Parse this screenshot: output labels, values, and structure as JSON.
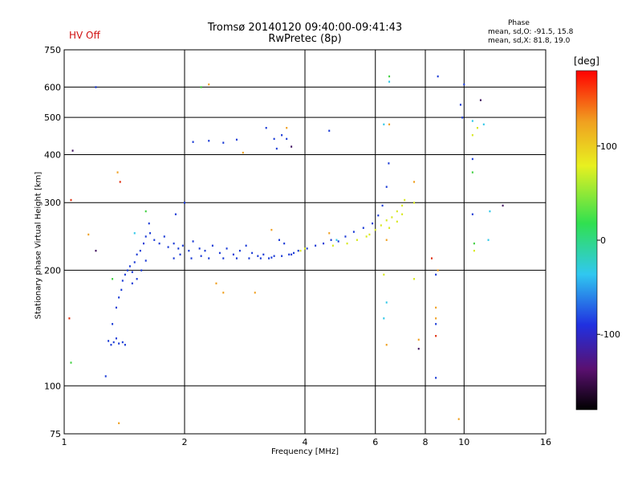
{
  "header": {
    "status": "HV Off",
    "title_line1": "Tromsø 20140120 09:40:00-09:41:43",
    "title_line2": "RwPretec (8p)",
    "phase_heading": "Phase",
    "phase_line1": "mean, sd,O: -91.5, 15.8",
    "phase_line2": "mean, sd,X:  81.8, 19.0"
  },
  "colors": {
    "blue": "#1a3ad6",
    "yellow": "#d8e820",
    "orange": "#f0a020",
    "red": "#e03010",
    "green": "#40d040",
    "cyan": "#30c8e8",
    "dark": "#401060"
  },
  "chart_data": {
    "type": "scatter",
    "title": "Tromsø 20140120 09:40:00-09:41:43",
    "subtitle": "RwPretec (8p)",
    "xlabel": "Frequency [MHz]",
    "ylabel": "Stationary phase Virtual Height [km]",
    "x_scale": "log",
    "y_scale": "log",
    "xlim": [
      1,
      16
    ],
    "ylim": [
      75,
      750
    ],
    "x_ticks": [
      1,
      2,
      4,
      6,
      8,
      10,
      16
    ],
    "y_ticks": [
      75,
      100,
      200,
      300,
      400,
      500,
      600,
      750
    ],
    "grid": true,
    "colorbar": {
      "label": "[deg]",
      "range": [
        -180,
        180
      ],
      "ticks": [
        100,
        0,
        -100
      ]
    },
    "series": [
      {
        "color": "blue",
        "points": [
          [
            1.29,
            131
          ],
          [
            1.31,
            128
          ],
          [
            1.33,
            130
          ],
          [
            1.35,
            133
          ],
          [
            1.37,
            129
          ],
          [
            1.4,
            130
          ],
          [
            1.42,
            128
          ],
          [
            1.32,
            145
          ],
          [
            1.35,
            160
          ],
          [
            1.37,
            170
          ],
          [
            1.39,
            178
          ],
          [
            1.4,
            188
          ],
          [
            1.42,
            195
          ],
          [
            1.44,
            200
          ],
          [
            1.46,
            205
          ],
          [
            1.48,
            198
          ],
          [
            1.5,
            210
          ],
          [
            1.52,
            220
          ],
          [
            1.55,
            225
          ],
          [
            1.58,
            235
          ],
          [
            1.6,
            245
          ],
          [
            1.48,
            185
          ],
          [
            1.52,
            190
          ],
          [
            1.56,
            200
          ],
          [
            1.6,
            212
          ],
          [
            1.64,
            250
          ],
          [
            1.68,
            240
          ],
          [
            1.73,
            235
          ],
          [
            1.78,
            245
          ],
          [
            1.82,
            230
          ],
          [
            1.88,
            235
          ],
          [
            1.93,
            228
          ],
          [
            1.98,
            232
          ],
          [
            2.05,
            225
          ],
          [
            2.1,
            238
          ],
          [
            2.18,
            228
          ],
          [
            2.25,
            225
          ],
          [
            2.35,
            232
          ],
          [
            2.45,
            222
          ],
          [
            2.55,
            228
          ],
          [
            2.65,
            220
          ],
          [
            2.75,
            225
          ],
          [
            2.85,
            232
          ],
          [
            2.95,
            222
          ],
          [
            3.05,
            218
          ],
          [
            3.15,
            220
          ],
          [
            3.25,
            215
          ],
          [
            3.35,
            218
          ],
          [
            3.45,
            240
          ],
          [
            3.55,
            235
          ],
          [
            3.65,
            220
          ],
          [
            3.75,
            222
          ],
          [
            3.85,
            225
          ],
          [
            4.05,
            228
          ],
          [
            4.25,
            232
          ],
          [
            4.45,
            235
          ],
          [
            4.65,
            240
          ],
          [
            4.85,
            238
          ],
          [
            5.05,
            245
          ],
          [
            5.3,
            252
          ],
          [
            5.6,
            258
          ],
          [
            5.9,
            265
          ],
          [
            6.1,
            278
          ],
          [
            6.25,
            295
          ],
          [
            6.4,
            330
          ],
          [
            6.48,
            380
          ],
          [
            1.88,
            215
          ],
          [
            1.95,
            220
          ],
          [
            2.08,
            215
          ],
          [
            2.2,
            218
          ],
          [
            2.3,
            215
          ],
          [
            2.5,
            215
          ],
          [
            2.7,
            215
          ],
          [
            2.9,
            215
          ],
          [
            3.1,
            215
          ],
          [
            3.3,
            216
          ],
          [
            3.5,
            218
          ],
          [
            3.7,
            220
          ],
          [
            2.1,
            432
          ],
          [
            2.3,
            435
          ],
          [
            2.5,
            430
          ],
          [
            2.7,
            438
          ],
          [
            3.2,
            470
          ],
          [
            3.35,
            440
          ],
          [
            3.5,
            450
          ],
          [
            3.6,
            440
          ],
          [
            3.4,
            415
          ],
          [
            4.6,
            462
          ],
          [
            1.2,
            600
          ],
          [
            8.6,
            640
          ],
          [
            9.8,
            540
          ],
          [
            9.9,
            500
          ],
          [
            10.5,
            390
          ],
          [
            10.5,
            280
          ],
          [
            8.5,
            195
          ],
          [
            8.5,
            145
          ],
          [
            8.5,
            105
          ],
          [
            1.27,
            106
          ],
          [
            10.0,
            610
          ],
          [
            2.0,
            300
          ],
          [
            1.9,
            280
          ],
          [
            1.63,
            265
          ]
        ]
      },
      {
        "color": "yellow",
        "points": [
          [
            5.1,
            235
          ],
          [
            5.4,
            240
          ],
          [
            5.7,
            245
          ],
          [
            6.0,
            255
          ],
          [
            6.2,
            262
          ],
          [
            6.4,
            270
          ],
          [
            6.6,
            275
          ],
          [
            6.8,
            285
          ],
          [
            7.0,
            295
          ],
          [
            7.1,
            305
          ],
          [
            6.5,
            258
          ],
          [
            6.8,
            268
          ],
          [
            7.0,
            280
          ],
          [
            5.8,
            248
          ],
          [
            4.7,
            232
          ],
          [
            4.0,
            228
          ],
          [
            3.9,
            225
          ],
          [
            6.3,
            195
          ],
          [
            7.5,
            190
          ],
          [
            10.5,
            450
          ],
          [
            10.8,
            470
          ],
          [
            10.6,
            225
          ],
          [
            7.5,
            300
          ]
        ]
      },
      {
        "color": "orange",
        "points": [
          [
            2.3,
            610
          ],
          [
            1.36,
            360
          ],
          [
            3.6,
            470
          ],
          [
            6.5,
            480
          ],
          [
            7.5,
            340
          ],
          [
            6.4,
            240
          ],
          [
            2.5,
            175
          ],
          [
            3.0,
            175
          ],
          [
            8.5,
            160
          ],
          [
            8.5,
            150
          ],
          [
            8.6,
            200
          ],
          [
            9.7,
            82
          ],
          [
            1.37,
            80
          ],
          [
            6.4,
            128
          ],
          [
            7.7,
            132
          ],
          [
            1.15,
            248
          ],
          [
            2.8,
            405
          ],
          [
            2.4,
            185
          ],
          [
            3.3,
            255
          ],
          [
            4.6,
            250
          ]
        ]
      },
      {
        "color": "red",
        "points": [
          [
            1.38,
            340
          ],
          [
            8.5,
            135
          ],
          [
            8.3,
            215
          ],
          [
            1.03,
            150
          ],
          [
            1.04,
            305
          ]
        ]
      },
      {
        "color": "green",
        "points": [
          [
            6.5,
            640
          ],
          [
            1.04,
            115
          ],
          [
            1.32,
            190
          ],
          [
            10.5,
            360
          ],
          [
            10.6,
            235
          ],
          [
            2.2,
            600
          ],
          [
            1.6,
            285
          ]
        ]
      },
      {
        "color": "cyan",
        "points": [
          [
            6.3,
            480
          ],
          [
            6.4,
            165
          ],
          [
            6.3,
            150
          ],
          [
            11.2,
            480
          ],
          [
            11.6,
            285
          ],
          [
            11.5,
            240
          ],
          [
            10.5,
            490
          ],
          [
            1.5,
            250
          ],
          [
            4.8,
            240
          ],
          [
            6.5,
            620
          ]
        ]
      },
      {
        "color": "dark",
        "points": [
          [
            1.2,
            225
          ],
          [
            7.7,
            125
          ],
          [
            12.5,
            295
          ],
          [
            11.0,
            555
          ],
          [
            1.05,
            410
          ],
          [
            3.7,
            420
          ]
        ]
      }
    ]
  }
}
